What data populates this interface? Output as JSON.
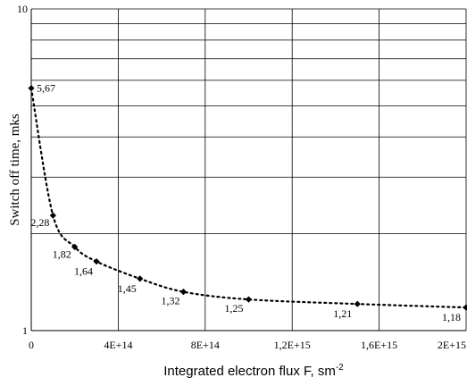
{
  "chart_data": {
    "type": "scatter",
    "title": "",
    "xlabel": "Integrated electron flux F, sm",
    "xlabel_sup": "-2",
    "ylabel": "Switch off time, mks",
    "xlim": [
      0,
      2000000000000000
    ],
    "ylim": [
      1,
      10
    ],
    "y_scale": "log",
    "grid": true,
    "x_ticks": [
      0,
      400000000000000,
      800000000000000,
      1200000000000000,
      1600000000000000,
      2000000000000000
    ],
    "x_tick_labels": [
      "0",
      "4E+14",
      "8E+14",
      "1,2E+15",
      "1,6E+15",
      "2E+15"
    ],
    "y_tick_labels": [
      {
        "value": 1,
        "label": "1"
      },
      {
        "value": 10,
        "label": "10"
      }
    ],
    "series": [
      {
        "x": [
          0,
          100000000000000,
          200000000000000,
          300000000000000,
          500000000000000,
          700000000000000,
          1000000000000000,
          1500000000000000,
          2000000000000000
        ],
        "y": [
          5.67,
          2.28,
          1.82,
          1.64,
          1.45,
          1.32,
          1.25,
          1.21,
          1.18
        ],
        "labels": [
          "5,67",
          "2,28",
          "1,82",
          "1,64",
          "1,45",
          "1,32",
          "1,25",
          "1,21",
          "1,18"
        ]
      }
    ],
    "line_style": "dotted",
    "marker": "diamond",
    "colors": {
      "marker": "#000000",
      "grid": "#000000",
      "line": "#000000"
    }
  }
}
